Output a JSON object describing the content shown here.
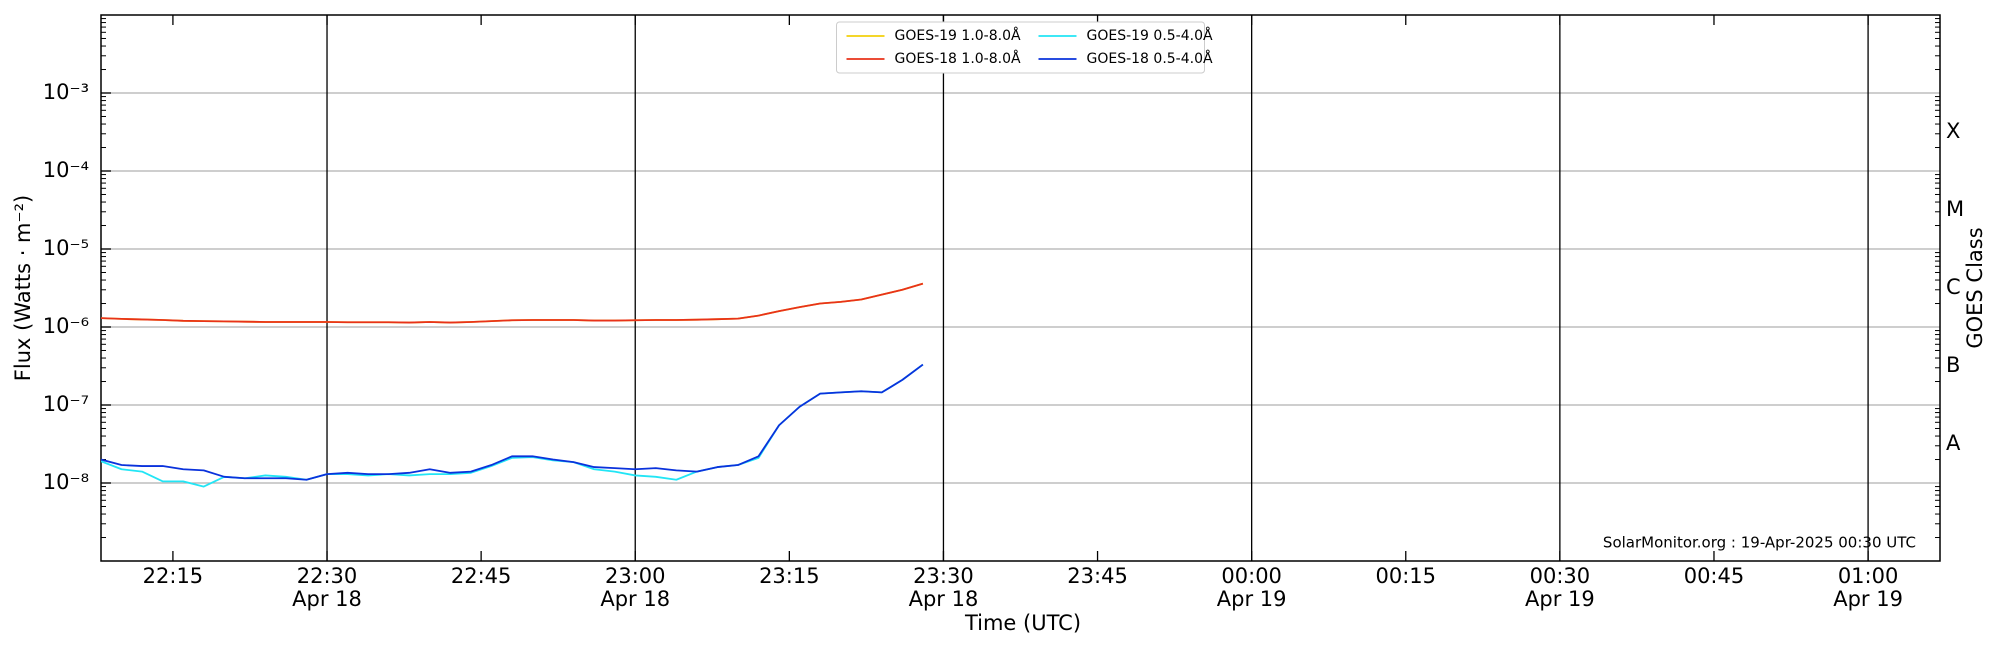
{
  "chart_data": {
    "type": "line",
    "xlabel": "Time (UTC)",
    "ylabel": "Flux (Watts · m⁻²)",
    "y2label": "GOES Class",
    "annotation": "SolarMonitor.org : 19-Apr-2025 00:30 UTC",
    "yscale": "log",
    "grid": true,
    "legend": "upper center",
    "xlim": [
      "Apr 18 22:08",
      "Apr 19 01:07"
    ],
    "ylim": [
      1e-09,
      0.01
    ],
    "y2lim": [
      1e-09,
      0.01
    ],
    "xticks": [
      {
        "value": "Apr 18 22:15",
        "label": "22:15"
      },
      {
        "value": "Apr 18 22:30",
        "label": "22:30\nApr 18"
      },
      {
        "value": "Apr 18 22:45",
        "label": "22:45"
      },
      {
        "value": "Apr 18 23:00",
        "label": "23:00\nApr 18"
      },
      {
        "value": "Apr 18 23:15",
        "label": "23:15"
      },
      {
        "value": "Apr 18 23:30",
        "label": "23:30\nApr 18"
      },
      {
        "value": "Apr 18 23:45",
        "label": "23:45"
      },
      {
        "value": "Apr 19 00:00",
        "label": "00:00\nApr 19"
      },
      {
        "value": "Apr 19 00:15",
        "label": "00:15"
      },
      {
        "value": "Apr 19 00:30",
        "label": "00:30\nApr 19"
      },
      {
        "value": "Apr 19 00:45",
        "label": "00:45"
      },
      {
        "value": "Apr 19 01:00",
        "label": "01:00\nApr 19"
      }
    ],
    "vlines": [
      "Apr 18 22:30",
      "Apr 18 23:00",
      "Apr 18 23:30",
      "Apr 19 00:00",
      "Apr 19 00:30",
      "Apr 19 01:00"
    ],
    "yticks": [
      {
        "value": 1e-08,
        "label": "10⁻⁸"
      },
      {
        "value": 1e-07,
        "label": "10⁻⁷"
      },
      {
        "value": 1e-06,
        "label": "10⁻⁶"
      },
      {
        "value": 1e-05,
        "label": "10⁻⁵"
      },
      {
        "value": 0.0001,
        "label": "10⁻⁴"
      },
      {
        "value": 0.001,
        "label": "10⁻³"
      }
    ],
    "y2ticks": [
      {
        "value": 3.1623e-08,
        "label": "A"
      },
      {
        "value": 3.1623e-07,
        "label": "B"
      },
      {
        "value": 3.1623e-06,
        "label": "C"
      },
      {
        "value": 3.1623e-05,
        "label": "M"
      },
      {
        "value": 0.00031623,
        "label": "X"
      }
    ],
    "x": [
      "Apr 18 22:08",
      "Apr 18 22:10",
      "Apr 18 22:12",
      "Apr 18 22:14",
      "Apr 18 22:16",
      "Apr 18 22:18",
      "Apr 18 22:20",
      "Apr 18 22:22",
      "Apr 18 22:24",
      "Apr 18 22:26",
      "Apr 18 22:28",
      "Apr 18 22:30",
      "Apr 18 22:32",
      "Apr 18 22:34",
      "Apr 18 22:36",
      "Apr 18 22:38",
      "Apr 18 22:40",
      "Apr 18 22:42",
      "Apr 18 22:44",
      "Apr 18 22:46",
      "Apr 18 22:48",
      "Apr 18 22:50",
      "Apr 18 22:52",
      "Apr 18 22:54",
      "Apr 18 22:56",
      "Apr 18 22:58",
      "Apr 18 23:00",
      "Apr 18 23:02",
      "Apr 18 23:04",
      "Apr 18 23:06",
      "Apr 18 23:08",
      "Apr 18 23:10",
      "Apr 18 23:12",
      "Apr 18 23:14",
      "Apr 18 23:16",
      "Apr 18 23:18",
      "Apr 18 23:20",
      "Apr 18 23:22",
      "Apr 18 23:24",
      "Apr 18 23:26",
      "Apr 18 23:28"
    ],
    "series": [
      {
        "name": "GOES-19 1.0-8.0Å",
        "color": "#f2d00c",
        "values": [
          1.3e-06,
          1.27e-06,
          1.25e-06,
          1.23e-06,
          1.2e-06,
          1.19e-06,
          1.18e-06,
          1.17e-06,
          1.16e-06,
          1.16e-06,
          1.16e-06,
          1.16e-06,
          1.15e-06,
          1.15e-06,
          1.15e-06,
          1.14e-06,
          1.16e-06,
          1.14e-06,
          1.16e-06,
          1.19e-06,
          1.22e-06,
          1.23e-06,
          1.23e-06,
          1.23e-06,
          1.21e-06,
          1.21e-06,
          1.22e-06,
          1.23e-06,
          1.23e-06,
          1.24e-06,
          1.26e-06,
          1.28e-06,
          1.4e-06,
          1.6e-06,
          1.8e-06,
          2e-06,
          2.1e-06,
          2.25e-06,
          2.6e-06,
          3e-06,
          3.6e-06
        ]
      },
      {
        "name": "GOES-18 1.0-8.0Å",
        "color": "#e8321a",
        "values": [
          1.3e-06,
          1.27e-06,
          1.25e-06,
          1.23e-06,
          1.2e-06,
          1.19e-06,
          1.18e-06,
          1.17e-06,
          1.16e-06,
          1.16e-06,
          1.16e-06,
          1.16e-06,
          1.15e-06,
          1.15e-06,
          1.15e-06,
          1.14e-06,
          1.16e-06,
          1.14e-06,
          1.16e-06,
          1.19e-06,
          1.22e-06,
          1.23e-06,
          1.23e-06,
          1.23e-06,
          1.21e-06,
          1.21e-06,
          1.22e-06,
          1.23e-06,
          1.23e-06,
          1.24e-06,
          1.26e-06,
          1.28e-06,
          1.4e-06,
          1.6e-06,
          1.8e-06,
          2e-06,
          2.1e-06,
          2.25e-06,
          2.6e-06,
          3e-06,
          3.6e-06
        ]
      },
      {
        "name": "GOES-19 0.5-4.0Å",
        "color": "#22e5f5",
        "values": [
          1.9e-08,
          1.5e-08,
          1.4e-08,
          1.05e-08,
          1.05e-08,
          9e-09,
          1.2e-08,
          1.15e-08,
          1.25e-08,
          1.2e-08,
          1.1e-08,
          1.3e-08,
          1.3e-08,
          1.25e-08,
          1.3e-08,
          1.25e-08,
          1.3e-08,
          1.3e-08,
          1.35e-08,
          1.65e-08,
          2.1e-08,
          2.15e-08,
          1.95e-08,
          1.85e-08,
          1.5e-08,
          1.4e-08,
          1.25e-08,
          1.2e-08,
          1.1e-08,
          1.4e-08,
          1.6e-08,
          1.7e-08,
          2.1e-08,
          5.5e-08,
          9.5e-08,
          1.4e-07,
          1.45e-07,
          1.5e-07,
          1.45e-07,
          2.1e-07,
          3.3e-07
        ]
      },
      {
        "name": "GOES-18 0.5-4.0Å",
        "color": "#0a32dc",
        "values": [
          2e-08,
          1.7e-08,
          1.65e-08,
          1.65e-08,
          1.5e-08,
          1.45e-08,
          1.2e-08,
          1.15e-08,
          1.15e-08,
          1.15e-08,
          1.1e-08,
          1.3e-08,
          1.35e-08,
          1.3e-08,
          1.3e-08,
          1.35e-08,
          1.5e-08,
          1.35e-08,
          1.4e-08,
          1.7e-08,
          2.2e-08,
          2.2e-08,
          2e-08,
          1.85e-08,
          1.6e-08,
          1.55e-08,
          1.5e-08,
          1.55e-08,
          1.45e-08,
          1.4e-08,
          1.6e-08,
          1.7e-08,
          2.2e-08,
          5.5e-08,
          9.5e-08,
          1.4e-07,
          1.45e-07,
          1.5e-07,
          1.45e-07,
          2.1e-07,
          3.3e-07
        ]
      }
    ]
  }
}
